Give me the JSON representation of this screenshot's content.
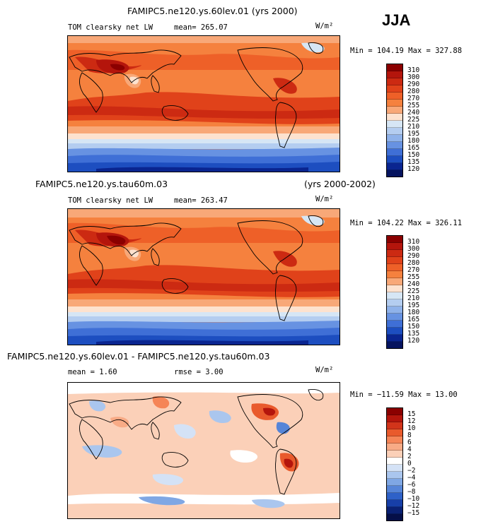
{
  "season": "JJA",
  "panels": [
    {
      "title": "FAMIPC5.ne120.ys.60lev.01 (yrs 2000)",
      "title_right": "",
      "field_label": "TOM clearsky net LW",
      "stat_label": "mean= 265.07",
      "units": "W/m²",
      "minmax": "Min = 104.19  Max = 327.88",
      "levels": [
        "310",
        "300",
        "290",
        "280",
        "270",
        "255",
        "240",
        "225",
        "210",
        "195",
        "180",
        "165",
        "150",
        "135",
        "120"
      ]
    },
    {
      "title": "FAMIPC5.ne120.ys.tau60m.03",
      "title_right": "(yrs 2000-2002)",
      "field_label": "TOM clearsky net LW",
      "stat_label": "mean= 263.47",
      "units": "W/m²",
      "minmax": "Min = 104.22  Max = 326.11",
      "levels": [
        "310",
        "300",
        "290",
        "280",
        "270",
        "255",
        "240",
        "225",
        "210",
        "195",
        "180",
        "165",
        "150",
        "135",
        "120"
      ]
    },
    {
      "title": "FAMIPC5.ne120.ys.60lev.01 - FAMIPC5.ne120.ys.tau60m.03",
      "title_right": "",
      "field_label": "mean =    1.60",
      "stat_label": "rmse =    3.00",
      "units": "W/m²",
      "minmax": "Min = −11.59  Max =   13.00",
      "levels": [
        "15",
        "12",
        "10",
        "8",
        "6",
        "4",
        "2",
        "0",
        "−2",
        "−4",
        "−6",
        "−8",
        "−10",
        "−12",
        "−15"
      ]
    }
  ],
  "colors": {
    "abs_scale": [
      "#8b0000",
      "#b4150c",
      "#cc2a12",
      "#e0421a",
      "#ee6028",
      "#f5813e",
      "#f8a878",
      "#fde2cf",
      "#d6e6f5",
      "#b4cdf0",
      "#8fb2ea",
      "#6792e2",
      "#3f6fd6",
      "#1d4ec0",
      "#0a2590",
      "#06145f"
    ],
    "diff_scale": [
      "#8b0000",
      "#b4150c",
      "#d2341a",
      "#e95a2c",
      "#f58557",
      "#f8ab86",
      "#fbd0b8",
      "#ffffff",
      "#d4e2f6",
      "#aac6ee",
      "#7fa7e4",
      "#5685d8",
      "#2e61c8",
      "#173fa8",
      "#0a2174",
      "#050f48"
    ]
  }
}
